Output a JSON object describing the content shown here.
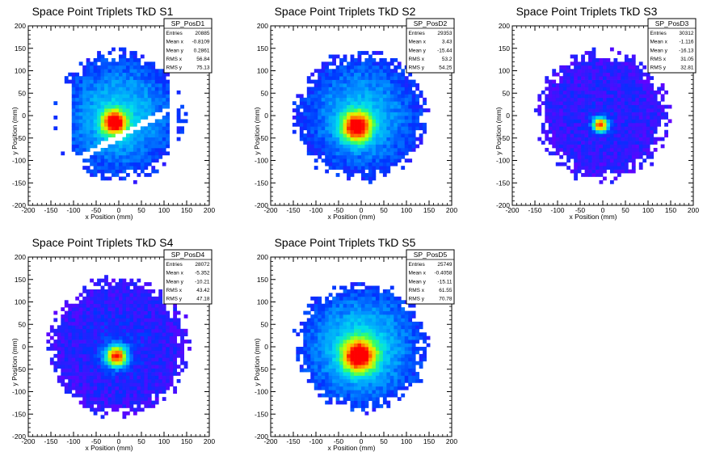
{
  "chart_data": [
    {
      "type": "heatmap",
      "title": "Space Point Triplets TkD S1",
      "xlabel": "x Position (mm)",
      "ylabel": "y Position (mm)",
      "xlim": [
        -200,
        200
      ],
      "ylim": [
        -200,
        200
      ],
      "xticks": [
        "-200",
        "-150",
        "-100",
        "-50",
        "0",
        "50",
        "100",
        "150",
        "200"
      ],
      "yticks": [
        "-200",
        "-150",
        "-100",
        "-50",
        "0",
        "50",
        "100",
        "150",
        "200"
      ],
      "grid": false,
      "stats_box": {
        "name": "SP_PosD1",
        "rows": [
          {
            "label": "Entries",
            "value": "20885"
          },
          {
            "label": "Mean x",
            "value": "-0.8109"
          },
          {
            "label": "Mean y",
            "value": "0.2861"
          },
          {
            "label": "RMS x",
            "value": "56.84"
          },
          {
            "label": "RMS y",
            "value": "75.13"
          }
        ]
      },
      "entries": 20885,
      "mean_x": -0.8109,
      "mean_y": 0.2861,
      "rms_x": 56.84,
      "rms_y": 75.13,
      "peak_x": -10,
      "peak_y": -15,
      "core_sigma": 18,
      "extent_radius": 150,
      "falloff": 0.55,
      "gaps": true,
      "colormap": [
        "#6600ff",
        "#0033ff",
        "#0099ff",
        "#00ddee",
        "#33ff66",
        "#ccff00",
        "#ffcc00",
        "#ff6600",
        "#ff0000"
      ]
    },
    {
      "type": "heatmap",
      "title": "Space Point Triplets TkD S2",
      "xlabel": "x Position (mm)",
      "ylabel": "y Position (mm)",
      "xlim": [
        -200,
        200
      ],
      "ylim": [
        -200,
        200
      ],
      "xticks": [
        "-200",
        "-150",
        "-100",
        "-50",
        "0",
        "50",
        "100",
        "150",
        "200"
      ],
      "yticks": [
        "-200",
        "-150",
        "-100",
        "-50",
        "0",
        "50",
        "100",
        "150",
        "200"
      ],
      "grid": false,
      "stats_box": {
        "name": "SP_PosD2",
        "rows": [
          {
            "label": "Entries",
            "value": "29353"
          },
          {
            "label": "Mean x",
            "value": "3.43"
          },
          {
            "label": "Mean y",
            "value": "-15.44"
          },
          {
            "label": "RMS x",
            "value": "53.2"
          },
          {
            "label": "RMS y",
            "value": "54.25"
          }
        ]
      },
      "entries": 29353,
      "mean_x": 3.43,
      "mean_y": -15.44,
      "rms_x": 53.2,
      "rms_y": 54.25,
      "peak_x": -10,
      "peak_y": -25,
      "core_sigma": 22,
      "extent_radius": 150,
      "falloff": 0.5,
      "gaps": false,
      "colormap": [
        "#6600ff",
        "#0033ff",
        "#0099ff",
        "#00ddee",
        "#33ff66",
        "#ccff00",
        "#ffcc00",
        "#ff6600",
        "#ff0000"
      ]
    },
    {
      "type": "heatmap",
      "title": "Space Point Triplets TkD S3",
      "xlabel": "x Position (mm)",
      "ylabel": "y Position (mm)",
      "xlim": [
        -200,
        200
      ],
      "ylim": [
        -200,
        200
      ],
      "xticks": [
        "-200",
        "-150",
        "-100",
        "-50",
        "0",
        "50",
        "100",
        "150",
        "200"
      ],
      "yticks": [
        "-200",
        "-150",
        "-100",
        "-50",
        "0",
        "50",
        "100",
        "150",
        "200"
      ],
      "grid": false,
      "stats_box": {
        "name": "SP_PosD3",
        "rows": [
          {
            "label": "Entries",
            "value": "30312"
          },
          {
            "label": "Mean x",
            "value": "-1.116"
          },
          {
            "label": "Mean y",
            "value": "-16.13"
          },
          {
            "label": "RMS x",
            "value": "31.05"
          },
          {
            "label": "RMS y",
            "value": "32.81"
          }
        ]
      },
      "entries": 30312,
      "mean_x": -1.116,
      "mean_y": -16.13,
      "rms_x": 31.05,
      "rms_y": 32.81,
      "peak_x": -5,
      "peak_y": -20,
      "core_sigma": 11,
      "extent_radius": 150,
      "falloff": 0.08,
      "gaps": false,
      "colormap": [
        "#6600ff",
        "#0033ff",
        "#0099ff",
        "#00ddee",
        "#33ff66",
        "#ccff00",
        "#ffcc00",
        "#ff6600",
        "#ff0000"
      ]
    },
    {
      "type": "heatmap",
      "title": "Space Point Triplets TkD S4",
      "xlabel": "x Position (mm)",
      "ylabel": "y Position (mm)",
      "xlim": [
        -200,
        200
      ],
      "ylim": [
        -200,
        200
      ],
      "xticks": [
        "-200",
        "-150",
        "-100",
        "-50",
        "0",
        "50",
        "100",
        "150",
        "200"
      ],
      "yticks": [
        "-200",
        "-150",
        "-100",
        "-50",
        "0",
        "50",
        "100",
        "150",
        "200"
      ],
      "grid": false,
      "stats_box": {
        "name": "SP_PosD4",
        "rows": [
          {
            "label": "Entries",
            "value": "28072"
          },
          {
            "label": "Mean x",
            "value": "-5.352"
          },
          {
            "label": "Mean y",
            "value": "-10.21"
          },
          {
            "label": "RMS x",
            "value": "43.42"
          },
          {
            "label": "RMS y",
            "value": "47.18"
          }
        ]
      },
      "entries": 28072,
      "mean_x": -5.352,
      "mean_y": -10.21,
      "rms_x": 43.42,
      "rms_y": 47.18,
      "peak_x": -5,
      "peak_y": -20,
      "core_sigma": 16,
      "extent_radius": 160,
      "falloff": 0.12,
      "gaps": false,
      "colormap": [
        "#6600ff",
        "#0033ff",
        "#0099ff",
        "#00ddee",
        "#33ff66",
        "#ccff00",
        "#ffcc00",
        "#ff6600",
        "#ff0000"
      ]
    },
    {
      "type": "heatmap",
      "title": "Space Point Triplets TkD S5",
      "xlabel": "x Position (mm)",
      "ylabel": "y Position (mm)",
      "xlim": [
        -200,
        200
      ],
      "ylim": [
        -200,
        200
      ],
      "xticks": [
        "-200",
        "-150",
        "-100",
        "-50",
        "0",
        "50",
        "100",
        "150",
        "200"
      ],
      "yticks": [
        "-200",
        "-150",
        "-100",
        "-50",
        "0",
        "50",
        "100",
        "150",
        "200"
      ],
      "grid": false,
      "stats_box": {
        "name": "SP_PosD5",
        "rows": [
          {
            "label": "Entries",
            "value": "25749"
          },
          {
            "label": "Mean x",
            "value": "-0.4058"
          },
          {
            "label": "Mean y",
            "value": "-15.11"
          },
          {
            "label": "RMS x",
            "value": "61.55"
          },
          {
            "label": "RMS y",
            "value": "70.78"
          }
        ]
      },
      "entries": 25749,
      "mean_x": -0.4058,
      "mean_y": -15.11,
      "rms_x": 61.55,
      "rms_y": 70.78,
      "peak_x": -5,
      "peak_y": -20,
      "core_sigma": 24,
      "extent_radius": 150,
      "falloff": 0.6,
      "gaps": false,
      "colormap": [
        "#6600ff",
        "#0033ff",
        "#0099ff",
        "#00ddee",
        "#33ff66",
        "#ccff00",
        "#ffcc00",
        "#ff6600",
        "#ff0000"
      ]
    }
  ]
}
